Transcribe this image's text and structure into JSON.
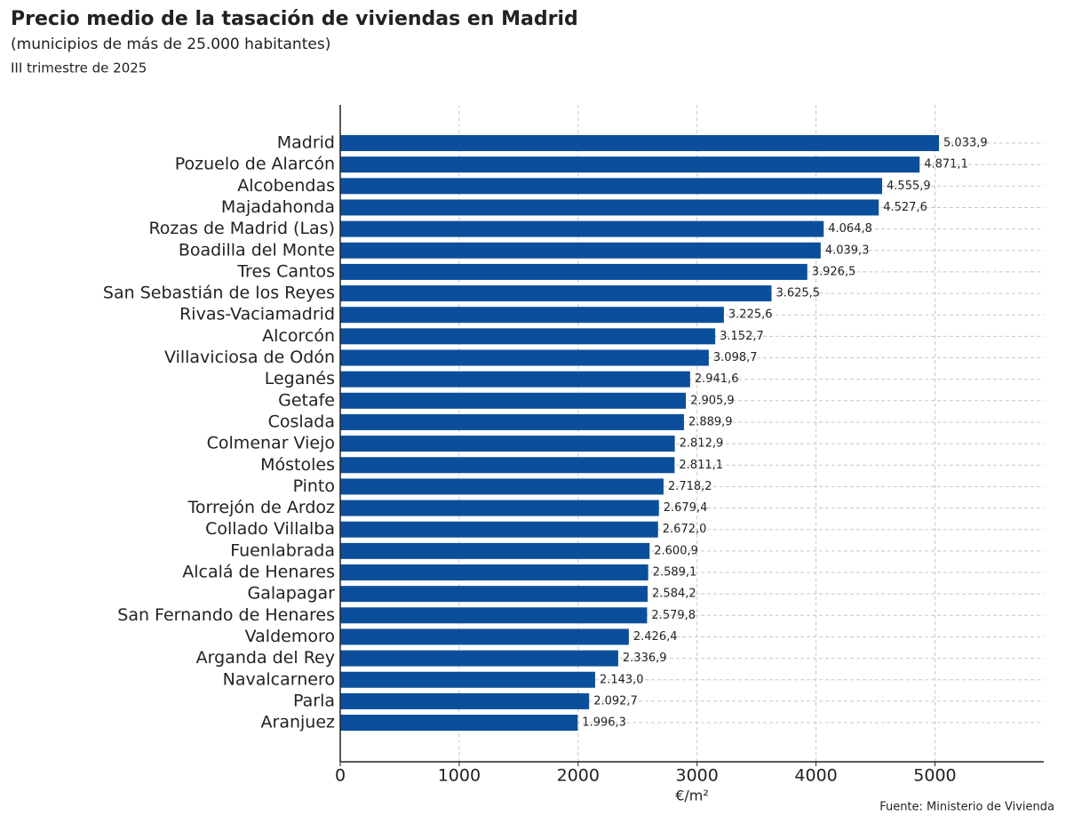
{
  "chart_data": {
    "type": "barh",
    "title": "Precio medio de la tasación de viviendas en Madrid",
    "subtitle": "(municipios de más de 25.000 habitantes)",
    "period": "III trimestre de 2025",
    "xlabel": "€/m²",
    "source": "Fuente: Ministerio de Vivienda",
    "color": "#0b4f9c",
    "grid": true,
    "categories": [
      "Madrid",
      "Pozuelo de Alarcón",
      "Alcobendas",
      "Majadahonda",
      "Rozas de Madrid (Las)",
      "Boadilla del Monte",
      "Tres Cantos",
      "San Sebastián de los Reyes",
      "Rivas-Vaciamadrid",
      "Alcorcón",
      "Villaviciosa de Odón",
      "Leganés",
      "Getafe",
      "Coslada",
      "Colmenar Viejo",
      "Móstoles",
      "Pinto",
      "Torrejón de Ardoz",
      "Collado Villalba",
      "Fuenlabrada",
      "Alcalá de Henares",
      "Galapagar",
      "San Fernando de Henares",
      "Valdemoro",
      "Arganda del Rey",
      "Navalcarnero",
      "Parla",
      "Aranjuez"
    ],
    "values": [
      5033.9,
      4871.1,
      4555.9,
      4527.6,
      4064.8,
      4039.3,
      3926.5,
      3625.5,
      3225.6,
      3152.7,
      3098.7,
      2941.6,
      2905.9,
      2889.9,
      2812.9,
      2811.1,
      2718.2,
      2679.4,
      2672.0,
      2600.9,
      2589.1,
      2584.2,
      2579.8,
      2426.4,
      2336.9,
      2143.0,
      2092.7,
      1996.3
    ],
    "value_labels": [
      "5.033,9",
      "4.871,1",
      "4.555,9",
      "4.527,6",
      "4.064,8",
      "4.039,3",
      "3.926,5",
      "3.625,5",
      "3.225,6",
      "3.152,7",
      "3.098,7",
      "2.941,6",
      "2.905,9",
      "2.889,9",
      "2.812,9",
      "2.811,1",
      "2.718,2",
      "2.679,4",
      "2.672,0",
      "2.600,9",
      "2.589,1",
      "2.584,2",
      "2.579,8",
      "2.426,4",
      "2.336,9",
      "2.143,0",
      "2.092,7",
      "1.996,3"
    ],
    "xlim": [
      0,
      5915
    ],
    "xticks": [
      0,
      1000,
      2000,
      3000,
      4000,
      5000
    ]
  }
}
